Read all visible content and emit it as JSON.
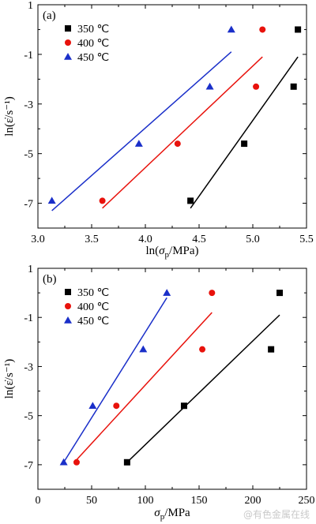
{
  "watermark": "@有色金属在线",
  "chart_data": [
    {
      "type": "scatter",
      "panel_label": "(a)",
      "xlabel_parts": {
        "pre": "ln(",
        "sym": "σ",
        "sub": "p",
        "post": "/MPa)"
      },
      "ylabel": "ln(ε̇/s⁻¹)",
      "xlim": [
        3.0,
        5.5
      ],
      "ylim": [
        -8,
        1
      ],
      "xticks": [
        "3.0",
        "3.5",
        "4.0",
        "4.5",
        "5.0",
        "5.5"
      ],
      "yticks": [
        "1",
        "-1",
        "-3",
        "-5",
        "-7"
      ],
      "legend_position": "top-left",
      "series": [
        {
          "name": "350 ℃",
          "marker": "square",
          "color": "#000000",
          "x": [
            4.42,
            4.92,
            5.38,
            5.42
          ],
          "y": [
            -6.9,
            -4.6,
            -2.3,
            0.0
          ],
          "fit": {
            "x": [
              4.42,
              5.42
            ],
            "y": [
              -7.2,
              -1.1
            ]
          }
        },
        {
          "name": "400 ℃",
          "marker": "circle",
          "color": "#e8120c",
          "x": [
            3.6,
            4.3,
            5.03,
            5.09
          ],
          "y": [
            -6.9,
            -4.6,
            -2.3,
            0.0
          ],
          "fit": {
            "x": [
              3.6,
              5.09
            ],
            "y": [
              -7.2,
              -1.1
            ]
          }
        },
        {
          "name": "450 ℃",
          "marker": "triangle",
          "color": "#1a2fc9",
          "x": [
            3.13,
            3.94,
            4.6,
            4.8
          ],
          "y": [
            -6.9,
            -4.6,
            -2.3,
            0.0
          ],
          "fit": {
            "x": [
              3.13,
              4.8
            ],
            "y": [
              -7.3,
              -0.9
            ]
          }
        }
      ]
    },
    {
      "type": "scatter",
      "panel_label": "(b)",
      "xlabel_parts": {
        "pre": "",
        "sym": "σ",
        "sub": "p",
        "post": "/MPa"
      },
      "ylabel": "ln(ε̇/s⁻¹)",
      "xlim": [
        0,
        250
      ],
      "ylim": [
        -8,
        1
      ],
      "xticks": [
        "0",
        "50",
        "100",
        "150",
        "200",
        "250"
      ],
      "yticks": [
        "1",
        "-1",
        "-3",
        "-5",
        "-7"
      ],
      "legend_position": "top-left",
      "series": [
        {
          "name": "350 ℃",
          "marker": "square",
          "color": "#000000",
          "x": [
            83,
            136,
            217,
            225
          ],
          "y": [
            -6.9,
            -4.6,
            -2.3,
            0.0
          ],
          "fit": {
            "x": [
              83,
              225
            ],
            "y": [
              -6.9,
              -0.9
            ]
          }
        },
        {
          "name": "400 ℃",
          "marker": "circle",
          "color": "#e8120c",
          "x": [
            36,
            73,
            153,
            162
          ],
          "y": [
            -6.9,
            -4.6,
            -2.3,
            0.0
          ],
          "fit": {
            "x": [
              36,
              162
            ],
            "y": [
              -6.8,
              -0.8
            ]
          }
        },
        {
          "name": "450 ℃",
          "marker": "triangle",
          "color": "#1a2fc9",
          "x": [
            24,
            51,
            98,
            120
          ],
          "y": [
            -6.9,
            -4.6,
            -2.3,
            0.0
          ],
          "fit": {
            "x": [
              24,
              120
            ],
            "y": [
              -6.9,
              -0.2
            ]
          }
        }
      ]
    }
  ]
}
